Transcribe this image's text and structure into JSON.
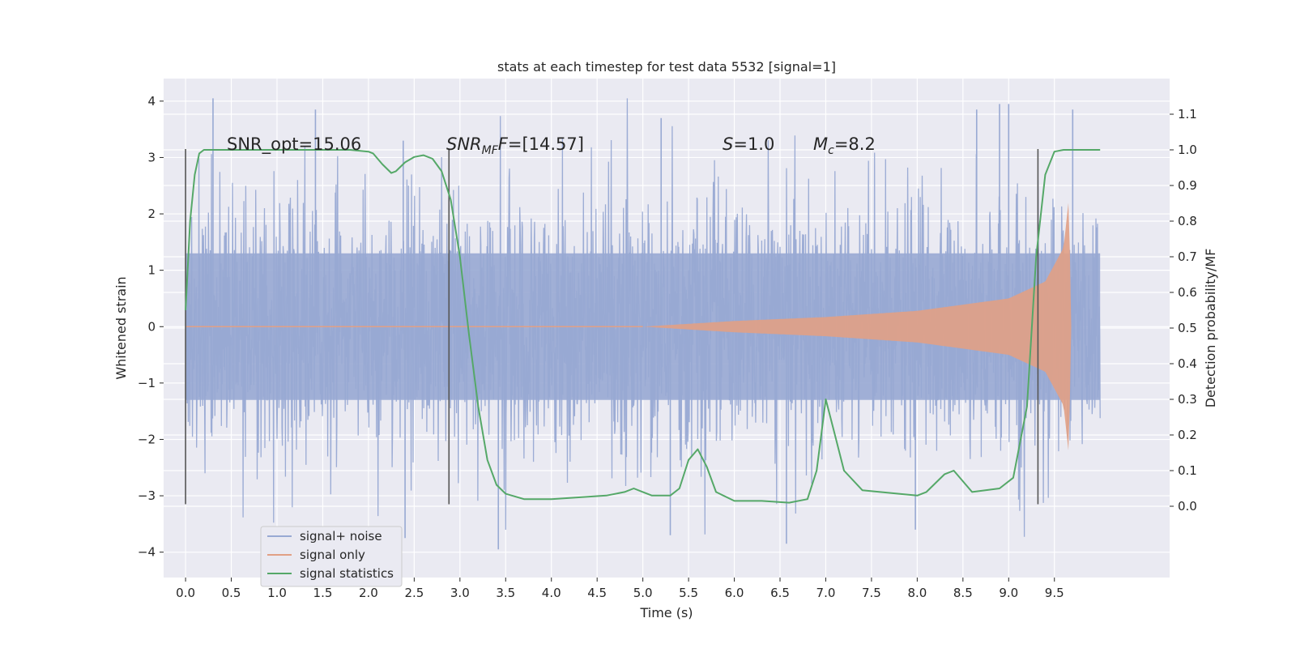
{
  "chart_data": {
    "type": "line",
    "title": "stats at each timestep for test data 5532 [signal=1]",
    "xlabel": "Time (s)",
    "ylabel": "Whitened strain",
    "y2label": "Detection probability/MF",
    "xlim": [
      -0.24,
      10.76
    ],
    "ylim": [
      -4.45,
      4.4
    ],
    "y2lim": [
      -0.2,
      1.2
    ],
    "x_ticks": [
      0.0,
      0.5,
      1.0,
      1.5,
      2.0,
      2.5,
      3.0,
      3.5,
      4.0,
      4.5,
      5.0,
      5.5,
      6.0,
      6.5,
      7.0,
      7.5,
      8.0,
      8.5,
      9.0,
      9.5
    ],
    "x_tick_labels": [
      "0.0",
      "0.5",
      "1.0",
      "1.5",
      "2.0",
      "2.5",
      "3.0",
      "3.5",
      "4.0",
      "4.5",
      "5.0",
      "5.5",
      "6.0",
      "6.5",
      "7.0",
      "7.5",
      "8.0",
      "8.5",
      "9.0",
      "9.5"
    ],
    "y_ticks": [
      -4,
      -3,
      -2,
      -1,
      0,
      1,
      2,
      3,
      4
    ],
    "y_tick_labels": [
      "−4",
      "−3",
      "−2",
      "−1",
      "0",
      "1",
      "2",
      "3",
      "4"
    ],
    "y2_ticks": [
      0.0,
      0.1,
      0.2,
      0.3,
      0.4,
      0.5,
      0.6,
      0.7,
      0.8,
      0.9,
      1.0,
      1.1
    ],
    "y2_tick_labels": [
      "0.0",
      "0.1",
      "0.2",
      "0.3",
      "0.4",
      "0.5",
      "0.6",
      "0.7",
      "0.8",
      "0.9",
      "1.0",
      "1.1"
    ],
    "grid": true,
    "legend_position": "lower-left",
    "annotations": {
      "snr_opt": "SNR_opt=15.06",
      "snr_mf_base": "SNR",
      "snr_mf_sub": "MF",
      "snr_mf_italic": "F",
      "snr_mf_value": "=[14.57]",
      "s_symbol": "S",
      "s_value": "=1.0",
      "mc_symbol": "M",
      "mc_sub": "c",
      "mc_value": "=8.2"
    },
    "vertical_markers": [
      0.0,
      2.88,
      9.32
    ],
    "marker_range": [
      -3.15,
      3.15
    ],
    "series": [
      {
        "name": "signal+ noise",
        "color": "#98a9d3",
        "x_range": [
          0.0,
          10.0
        ],
        "band": {
          "typical_amplitude": 1.3,
          "max_positive": 4.05,
          "min_negative": -3.95
        },
        "notable_peaks": [
          {
            "x": 0.3,
            "y": 4.05
          },
          {
            "x": 1.42,
            "y": 3.85
          },
          {
            "x": 2.38,
            "y": 3.3
          },
          {
            "x": 5.2,
            "y": 3.7
          },
          {
            "x": 8.65,
            "y": 3.85
          },
          {
            "x": 8.9,
            "y": 3.95
          },
          {
            "x": 9.0,
            "y": 3.95
          },
          {
            "x": 9.7,
            "y": 3.85
          },
          {
            "x": 3.42,
            "y": -3.95
          },
          {
            "x": 2.4,
            "y": -3.75
          },
          {
            "x": 6.57,
            "y": -3.85
          },
          {
            "x": 7.98,
            "y": -3.6
          },
          {
            "x": 5.3,
            "y": -3.7
          }
        ]
      },
      {
        "name": "signal only",
        "color": "#e1a085",
        "x_range": [
          5.0,
          9.7
        ],
        "envelope": [
          {
            "x": 5.0,
            "y": 0.0
          },
          {
            "x": 6.0,
            "y": 0.1
          },
          {
            "x": 7.0,
            "y": 0.17
          },
          {
            "x": 8.0,
            "y": 0.28
          },
          {
            "x": 9.0,
            "y": 0.5
          },
          {
            "x": 9.4,
            "y": 0.8
          },
          {
            "x": 9.6,
            "y": 1.4
          },
          {
            "x": 9.66,
            "y": 2.3
          },
          {
            "x": 9.68,
            "y": 0.1
          }
        ]
      },
      {
        "name": "signal statistics",
        "color": "#55a868",
        "axis": "right",
        "x": [
          0.0,
          0.05,
          0.1,
          0.15,
          0.2,
          0.3,
          0.5,
          1.0,
          1.5,
          1.8,
          2.0,
          2.05,
          2.15,
          2.25,
          2.3,
          2.4,
          2.5,
          2.6,
          2.7,
          2.8,
          2.9,
          3.0,
          3.1,
          3.2,
          3.3,
          3.4,
          3.5,
          3.7,
          4.0,
          4.3,
          4.6,
          4.8,
          4.9,
          5.0,
          5.1,
          5.3,
          5.4,
          5.5,
          5.6,
          5.7,
          5.8,
          6.0,
          6.3,
          6.6,
          6.8,
          6.9,
          7.0,
          7.1,
          7.2,
          7.4,
          7.8,
          8.0,
          8.1,
          8.3,
          8.4,
          8.6,
          8.9,
          9.05,
          9.2,
          9.3,
          9.4,
          9.5,
          9.6,
          9.8,
          10.0
        ],
        "values": [
          0.55,
          0.8,
          0.93,
          0.99,
          1.0,
          1.0,
          1.0,
          1.0,
          1.0,
          1.0,
          0.995,
          0.99,
          0.96,
          0.935,
          0.94,
          0.965,
          0.98,
          0.985,
          0.975,
          0.94,
          0.86,
          0.7,
          0.48,
          0.28,
          0.13,
          0.06,
          0.035,
          0.02,
          0.02,
          0.025,
          0.03,
          0.04,
          0.05,
          0.04,
          0.03,
          0.03,
          0.05,
          0.13,
          0.16,
          0.11,
          0.04,
          0.015,
          0.015,
          0.01,
          0.02,
          0.1,
          0.3,
          0.2,
          0.1,
          0.045,
          0.035,
          0.03,
          0.04,
          0.09,
          0.1,
          0.04,
          0.05,
          0.08,
          0.28,
          0.7,
          0.93,
          0.995,
          1.0,
          1.0,
          1.0
        ]
      }
    ]
  }
}
